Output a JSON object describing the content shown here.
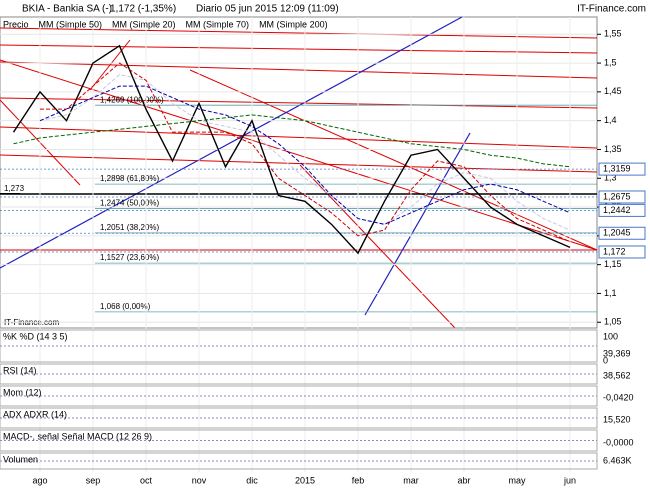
{
  "header": {
    "symbol": "BKIA - Bankia SA (-)",
    "price": "1,172 (-1,35%)",
    "info": "Diario  05 jun 2015 12:09 (11:09)",
    "site": "IT-Finance.com"
  },
  "chart_data": {
    "type": "line",
    "categories": [
      null,
      "ago",
      null,
      "sep",
      null,
      "oct",
      null,
      "nov",
      null,
      "dic",
      null,
      "2015",
      null,
      "feb",
      null,
      "mar",
      null,
      "abr",
      null,
      "may",
      null,
      "jun"
    ],
    "series": [
      {
        "name": "Precio",
        "color": "#000000",
        "values": [
          1.38,
          1.45,
          1.4,
          1.5,
          1.53,
          1.42,
          1.33,
          1.43,
          1.32,
          1.4,
          1.27,
          1.26,
          1.22,
          1.17,
          1.26,
          1.34,
          1.35,
          1.3,
          1.25,
          1.22,
          1.2,
          1.18
        ]
      },
      {
        "name": "MM (Simple 50)",
        "color": "#c8c8e8",
        "values": [
          null,
          1.4,
          1.41,
          1.44,
          1.48,
          1.47,
          1.43,
          1.4,
          1.39,
          1.38,
          1.34,
          1.3,
          1.27,
          1.23,
          1.22,
          1.25,
          1.29,
          1.31,
          1.3,
          1.26,
          1.23,
          1.21
        ]
      },
      {
        "name": "MM (Simple 20)",
        "color": "#cc0000",
        "values": [
          null,
          1.42,
          1.42,
          1.46,
          1.5,
          1.47,
          1.38,
          1.38,
          1.38,
          1.36,
          1.3,
          1.27,
          1.24,
          1.2,
          1.21,
          1.28,
          1.33,
          1.32,
          1.27,
          1.23,
          1.21,
          1.19
        ]
      },
      {
        "name": "MM (Simple 70)",
        "color": "#0000aa",
        "values": [
          null,
          1.4,
          1.42,
          1.44,
          1.46,
          1.46,
          1.44,
          1.42,
          1.41,
          1.39,
          1.36,
          1.32,
          1.27,
          1.23,
          1.22,
          1.24,
          1.26,
          1.28,
          1.29,
          1.28,
          1.26,
          1.24
        ]
      },
      {
        "name": "MM (Simple 200)",
        "color": "#006600",
        "values": [
          1.36,
          1.37,
          1.375,
          1.38,
          1.385,
          1.39,
          1.395,
          1.4,
          1.405,
          1.41,
          1.405,
          1.4,
          1.39,
          1.38,
          1.37,
          1.36,
          1.355,
          1.35,
          1.34,
          1.335,
          1.325,
          1.32
        ]
      }
    ],
    "ylim": [
      1.04,
      1.58
    ],
    "yticks": [
      {
        "value": 1.05,
        "label": "1,05"
      },
      {
        "value": 1.1,
        "label": "1,1"
      },
      {
        "value": 1.15,
        "label": "1,15"
      },
      {
        "value": 1.2,
        "label": "1,2"
      },
      {
        "value": 1.25,
        "label": "1,25"
      },
      {
        "value": 1.3,
        "label": "1,3"
      },
      {
        "value": 1.35,
        "label": "1,35"
      },
      {
        "value": 1.4,
        "label": "1,4"
      },
      {
        "value": 1.45,
        "label": "1,45"
      },
      {
        "value": 1.5,
        "label": "1,5"
      },
      {
        "value": 1.55,
        "label": "1,55"
      }
    ],
    "grid": true,
    "fib_levels": [
      {
        "value": 1.4269,
        "label": "1,4269 (100,00%)"
      },
      {
        "value": 1.2898,
        "label": "1,2898 (61,80%)"
      },
      {
        "value": 1.2474,
        "label": "1,2474 (50,00%)"
      },
      {
        "value": 1.2051,
        "label": "1,2051 (38,20%)"
      },
      {
        "value": 1.1527,
        "label": "1,1527 (23,60%)"
      },
      {
        "value": 1.068,
        "label": "1,068 (0,00%)"
      }
    ],
    "price_marks": [
      {
        "value": 1.3159,
        "label": "1,3159"
      },
      {
        "value": 1.2675,
        "label": "1,2675"
      },
      {
        "value": 1.2442,
        "label": "1,2442"
      },
      {
        "value": 1.2045,
        "label": "1,2045"
      },
      {
        "value": 1.172,
        "label": "1,172"
      }
    ],
    "support": {
      "value": 1.273,
      "label": "1,273"
    }
  },
  "panels": [
    {
      "label": "%K  %D (14 3 5)",
      "top": "100",
      "bottom": "0",
      "last": "39,369"
    },
    {
      "label": "RSI (14)",
      "last": "38,562"
    },
    {
      "label": "Mom (12)",
      "last": "-0,0420"
    },
    {
      "label": "ADX  ADXR (14)",
      "last": "15,520"
    },
    {
      "label": "MACD-, señal  Señal  MACD (12 26 9)",
      "last": "-0,0000"
    },
    {
      "label": "Volumen",
      "last": "6.463K"
    }
  ]
}
